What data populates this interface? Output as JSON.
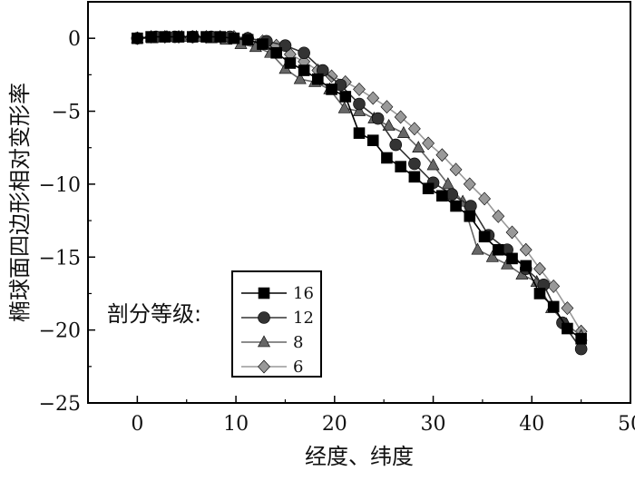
{
  "chart_data": {
    "type": "line",
    "title": "",
    "xlabel": "经度、纬度",
    "ylabel": "椭球面四边形相对变形率",
    "xlim": [
      -5,
      50
    ],
    "ylim": [
      -25,
      2.5
    ],
    "xticks": [
      "0",
      "10",
      "20",
      "30",
      "40",
      "50"
    ],
    "yticks": [
      "0",
      "−5",
      "−10",
      "−15",
      "−20",
      "−25"
    ],
    "xtick_values": [
      0,
      10,
      20,
      30,
      40,
      50
    ],
    "ytick_values": [
      0,
      -5,
      -10,
      -15,
      -20,
      -25
    ],
    "grid": false,
    "legend": {
      "title": "剖分等级:",
      "placement": "lower-left"
    },
    "series": [
      {
        "name": "16",
        "marker": "square",
        "color": "#000000",
        "x": [
          0,
          1.4,
          2.8,
          4.2,
          5.6,
          7.0,
          8.4,
          9.8,
          11.2,
          12.7,
          14.1,
          15.5,
          16.9,
          18.3,
          19.7,
          21.1,
          22.5,
          23.9,
          25.3,
          26.7,
          28.1,
          29.5,
          30.9,
          32.3,
          33.7,
          35.2,
          36.6,
          38.0,
          39.4,
          40.8,
          42.2,
          43.6,
          45.0
        ],
        "y": [
          0,
          0.1,
          0.1,
          0.1,
          0.1,
          0.1,
          0.1,
          0.0,
          -0.1,
          -0.4,
          -1.0,
          -1.7,
          -2.2,
          -2.8,
          -3.5,
          -4.0,
          -6.5,
          -7.0,
          -8.2,
          -8.8,
          -9.5,
          -10.3,
          -10.8,
          -11.5,
          -12.2,
          -13.6,
          -14.5,
          -15.1,
          -15.6,
          -17.5,
          -18.4,
          -19.9,
          -20.6
        ]
      },
      {
        "name": "12",
        "marker": "circle",
        "color": "#333333",
        "x": [
          0,
          1.9,
          3.8,
          5.6,
          7.5,
          9.4,
          11.2,
          13.1,
          15.0,
          16.9,
          18.8,
          20.6,
          22.5,
          24.4,
          26.2,
          28.1,
          30.0,
          31.9,
          33.8,
          35.6,
          37.5,
          39.4,
          41.2,
          43.1,
          45.0
        ],
        "y": [
          0,
          0.1,
          0.1,
          0.1,
          0.1,
          0.1,
          0.0,
          -0.2,
          -0.5,
          -1.0,
          -2.2,
          -3.2,
          -4.5,
          -5.5,
          -7.3,
          -8.6,
          -9.9,
          -10.7,
          -11.5,
          -13.5,
          -14.5,
          -15.8,
          -16.9,
          -19.5,
          -21.3
        ]
      },
      {
        "name": "8",
        "marker": "triangle",
        "color": "#666666",
        "x": [
          0,
          1.5,
          3.0,
          4.5,
          6.0,
          7.5,
          9.0,
          10.5,
          12.0,
          13.5,
          15.0,
          16.5,
          18.0,
          19.5,
          21.0,
          22.5,
          24.0,
          25.5,
          27.0,
          28.5,
          30.0,
          31.5,
          33.0,
          34.5,
          36.0,
          37.5,
          39.0,
          40.5,
          42.0,
          43.5,
          45.0
        ],
        "y": [
          0,
          0,
          0.1,
          0.1,
          0.1,
          0.0,
          -0.1,
          -0.4,
          -0.6,
          -1.0,
          -2.1,
          -2.8,
          -3.0,
          -3.5,
          -4.8,
          -5.0,
          -5.5,
          -6.0,
          -6.5,
          -7.5,
          -8.7,
          -10.0,
          -11.2,
          -14.5,
          -15.0,
          -15.5,
          -16.2,
          -16.7,
          -18.5,
          -19.6,
          -20.4
        ]
      },
      {
        "name": "6",
        "marker": "diamond",
        "color": "#999999",
        "x": [
          0,
          1.4,
          2.8,
          4.2,
          5.6,
          7.0,
          8.4,
          9.8,
          11.2,
          12.7,
          14.1,
          15.5,
          16.9,
          18.3,
          19.7,
          21.1,
          22.5,
          23.9,
          25.3,
          26.7,
          28.1,
          29.5,
          30.9,
          32.3,
          33.7,
          35.2,
          36.6,
          38.0,
          39.4,
          40.8,
          42.2,
          43.6,
          45.0
        ],
        "y": [
          0,
          0.1,
          0.1,
          0.1,
          0.1,
          0.1,
          0.1,
          0.1,
          0.0,
          -0.2,
          -0.5,
          -1.1,
          -1.6,
          -2.2,
          -2.6,
          -3.0,
          -3.5,
          -4.1,
          -4.7,
          -5.4,
          -6.2,
          -7.2,
          -8.0,
          -9.0,
          -10.0,
          -11.0,
          -12.2,
          -13.3,
          -14.5,
          -15.8,
          -17.0,
          -18.5,
          -20.1
        ]
      }
    ]
  }
}
